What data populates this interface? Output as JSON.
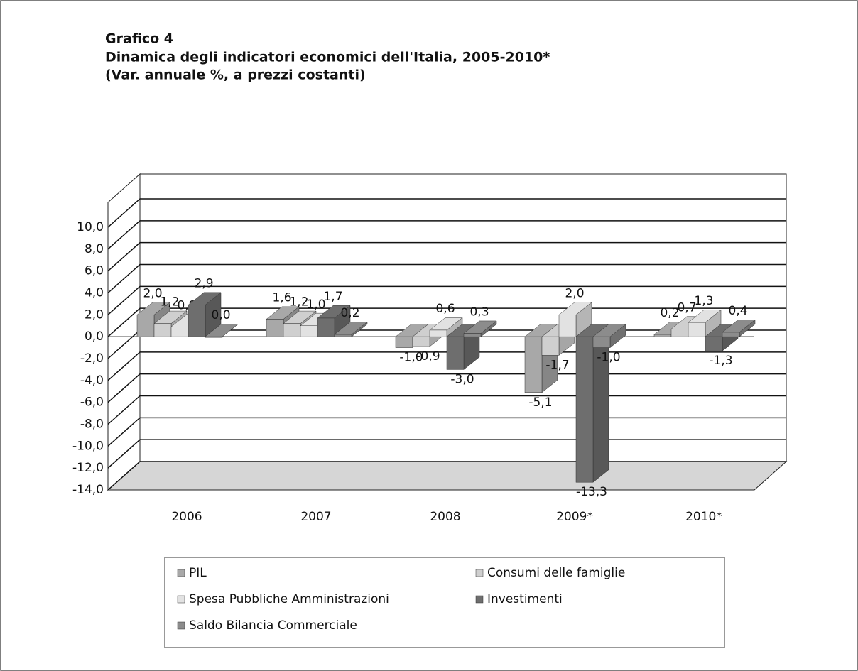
{
  "chart_data": {
    "type": "bar",
    "title": "Grafico 4",
    "subtitle": "Dinamica degli indicatori economici dell'Italia, 2005-2010*",
    "note": "(Var. annuale %, a prezzi costanti)",
    "categories": [
      "2006",
      "2007",
      "2008",
      "2009*",
      "2010*"
    ],
    "series": [
      {
        "name": "PIL",
        "color": "#a8a8a8",
        "values": [
          2.0,
          1.6,
          -1.0,
          -5.1,
          0.2
        ],
        "value_labels": [
          "2,0",
          "1,6",
          "-1,0",
          "-5,1",
          "0,2"
        ]
      },
      {
        "name": "Consumi delle famiglie",
        "color": "#cfcfcf",
        "values": [
          1.2,
          1.2,
          -0.9,
          -1.7,
          0.7
        ],
        "value_labels": [
          "1,2",
          "1,2",
          "-0,9",
          "-1,7",
          "0,7"
        ]
      },
      {
        "name": "Spesa Pubbliche Amministrazioni",
        "color": "#e2e2e2",
        "values": [
          0.9,
          1.0,
          0.6,
          2.0,
          1.3
        ],
        "value_labels": [
          "0,9",
          "1,0",
          "0,6",
          "2,0",
          "1,3"
        ]
      },
      {
        "name": "Investimenti",
        "color": "#6e6e6e",
        "values": [
          2.9,
          1.7,
          -3.0,
          -13.3,
          -1.3
        ],
        "value_labels": [
          "2,9",
          "1,7",
          "-3,0",
          "-13,3",
          "-1,3"
        ]
      },
      {
        "name": "Saldo Bilancia Commerciale",
        "color": "#8c8c8c",
        "values": [
          0.0,
          0.2,
          0.3,
          -1.0,
          0.4
        ],
        "value_labels": [
          "0,0",
          "0,2",
          "0,3",
          "-1,0",
          "0,4"
        ]
      }
    ],
    "ylim": [
      -14,
      10
    ],
    "yticks": [
      {
        "value": -14,
        "label": "-14,0"
      },
      {
        "value": -12,
        "label": "-12,0"
      },
      {
        "value": -10,
        "label": "-10,0"
      },
      {
        "value": -8,
        "label": "-8,0"
      },
      {
        "value": -6,
        "label": "-6,0"
      },
      {
        "value": -4,
        "label": "-4,0"
      },
      {
        "value": -2,
        "label": "-2,0"
      },
      {
        "value": 0,
        "label": "0,0"
      },
      {
        "value": 2,
        "label": "2,0"
      },
      {
        "value": 4,
        "label": "4,0"
      },
      {
        "value": 6,
        "label": "6,0"
      },
      {
        "value": 8,
        "label": "8,0"
      },
      {
        "value": 10,
        "label": "10,0"
      }
    ],
    "grid": true
  }
}
